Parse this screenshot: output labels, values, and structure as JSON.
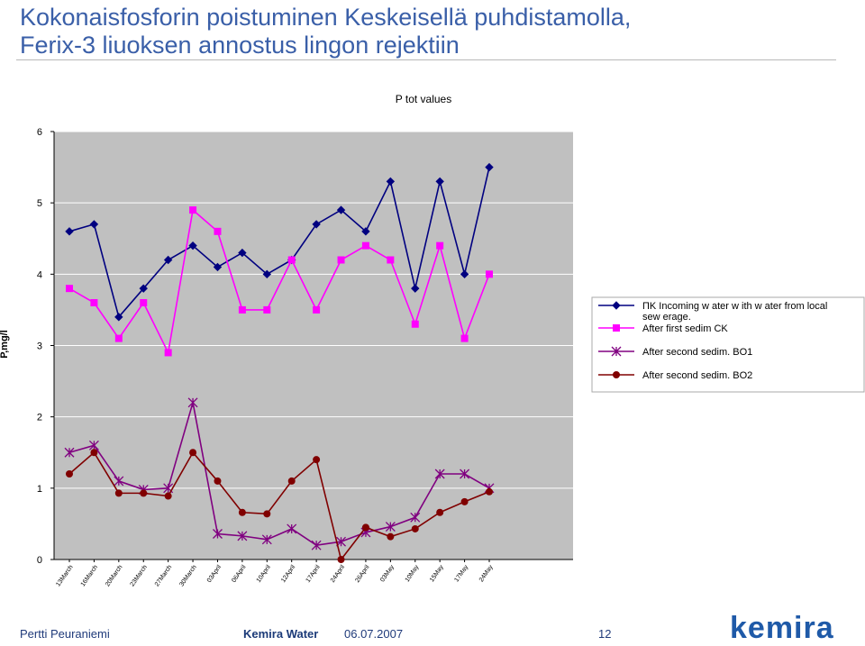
{
  "slide": {
    "title_line1": "Kokonaisfosforin poistuminen Keskeisellä puhdistamolla,",
    "title_line2": "Ferix-3 liuoksen annostus lingon rejektiin"
  },
  "footer": {
    "author": "Pertti Peuraniemi",
    "company": "Kemira Water",
    "date": "06.07.2007",
    "page": "12",
    "logo_text": "kemira"
  },
  "chart_data": {
    "type": "line",
    "title": "P tot values",
    "ylabel": "P,mg/l",
    "xlabel": "",
    "ylim": [
      0,
      6
    ],
    "yticks": [
      0,
      1,
      2,
      3,
      4,
      5,
      6
    ],
    "grid": true,
    "legend_position": "right",
    "x_labels": [
      "13March",
      "16March",
      "20March",
      "23March",
      "27March",
      "30March",
      "03April",
      "06April",
      "10April",
      "12April",
      "17April",
      "24April",
      "26April",
      "03May",
      "10May",
      "15May",
      "17May",
      "24May"
    ],
    "series": [
      {
        "name": "ПK Incoming w ater w ith w ater from local sew erage.",
        "color": "#000080",
        "marker": "diamond",
        "values": [
          4.6,
          4.7,
          3.4,
          3.8,
          4.2,
          4.4,
          4.1,
          4.3,
          4.0,
          4.2,
          4.7,
          4.9,
          4.6,
          5.3,
          3.8,
          5.3,
          4.0,
          5.5
        ]
      },
      {
        "name": "After first sedim CK",
        "color": "#ff00ff",
        "marker": "square",
        "values": [
          3.8,
          3.6,
          3.1,
          3.6,
          2.9,
          4.9,
          4.6,
          3.5,
          3.5,
          4.2,
          3.5,
          4.2,
          4.4,
          4.2,
          3.3,
          4.4,
          3.1,
          4.0
        ]
      },
      {
        "name": "After second sedim. BO1",
        "color": "#800080",
        "marker": "star",
        "values": [
          1.5,
          1.6,
          1.1,
          0.98,
          1.0,
          2.2,
          0.36,
          0.33,
          0.28,
          0.43,
          0.2,
          0.25,
          0.38,
          0.46,
          0.59,
          1.2,
          1.2,
          1.0
        ]
      },
      {
        "name": "After second sedim. BO2",
        "color": "#800000",
        "marker": "circle",
        "values": [
          1.2,
          1.5,
          0.93,
          0.93,
          0.89,
          1.5,
          1.1,
          0.66,
          0.64,
          1.1,
          1.4,
          0.0,
          0.45,
          0.32,
          0.43,
          0.66,
          0.81,
          0.95
        ]
      }
    ]
  }
}
